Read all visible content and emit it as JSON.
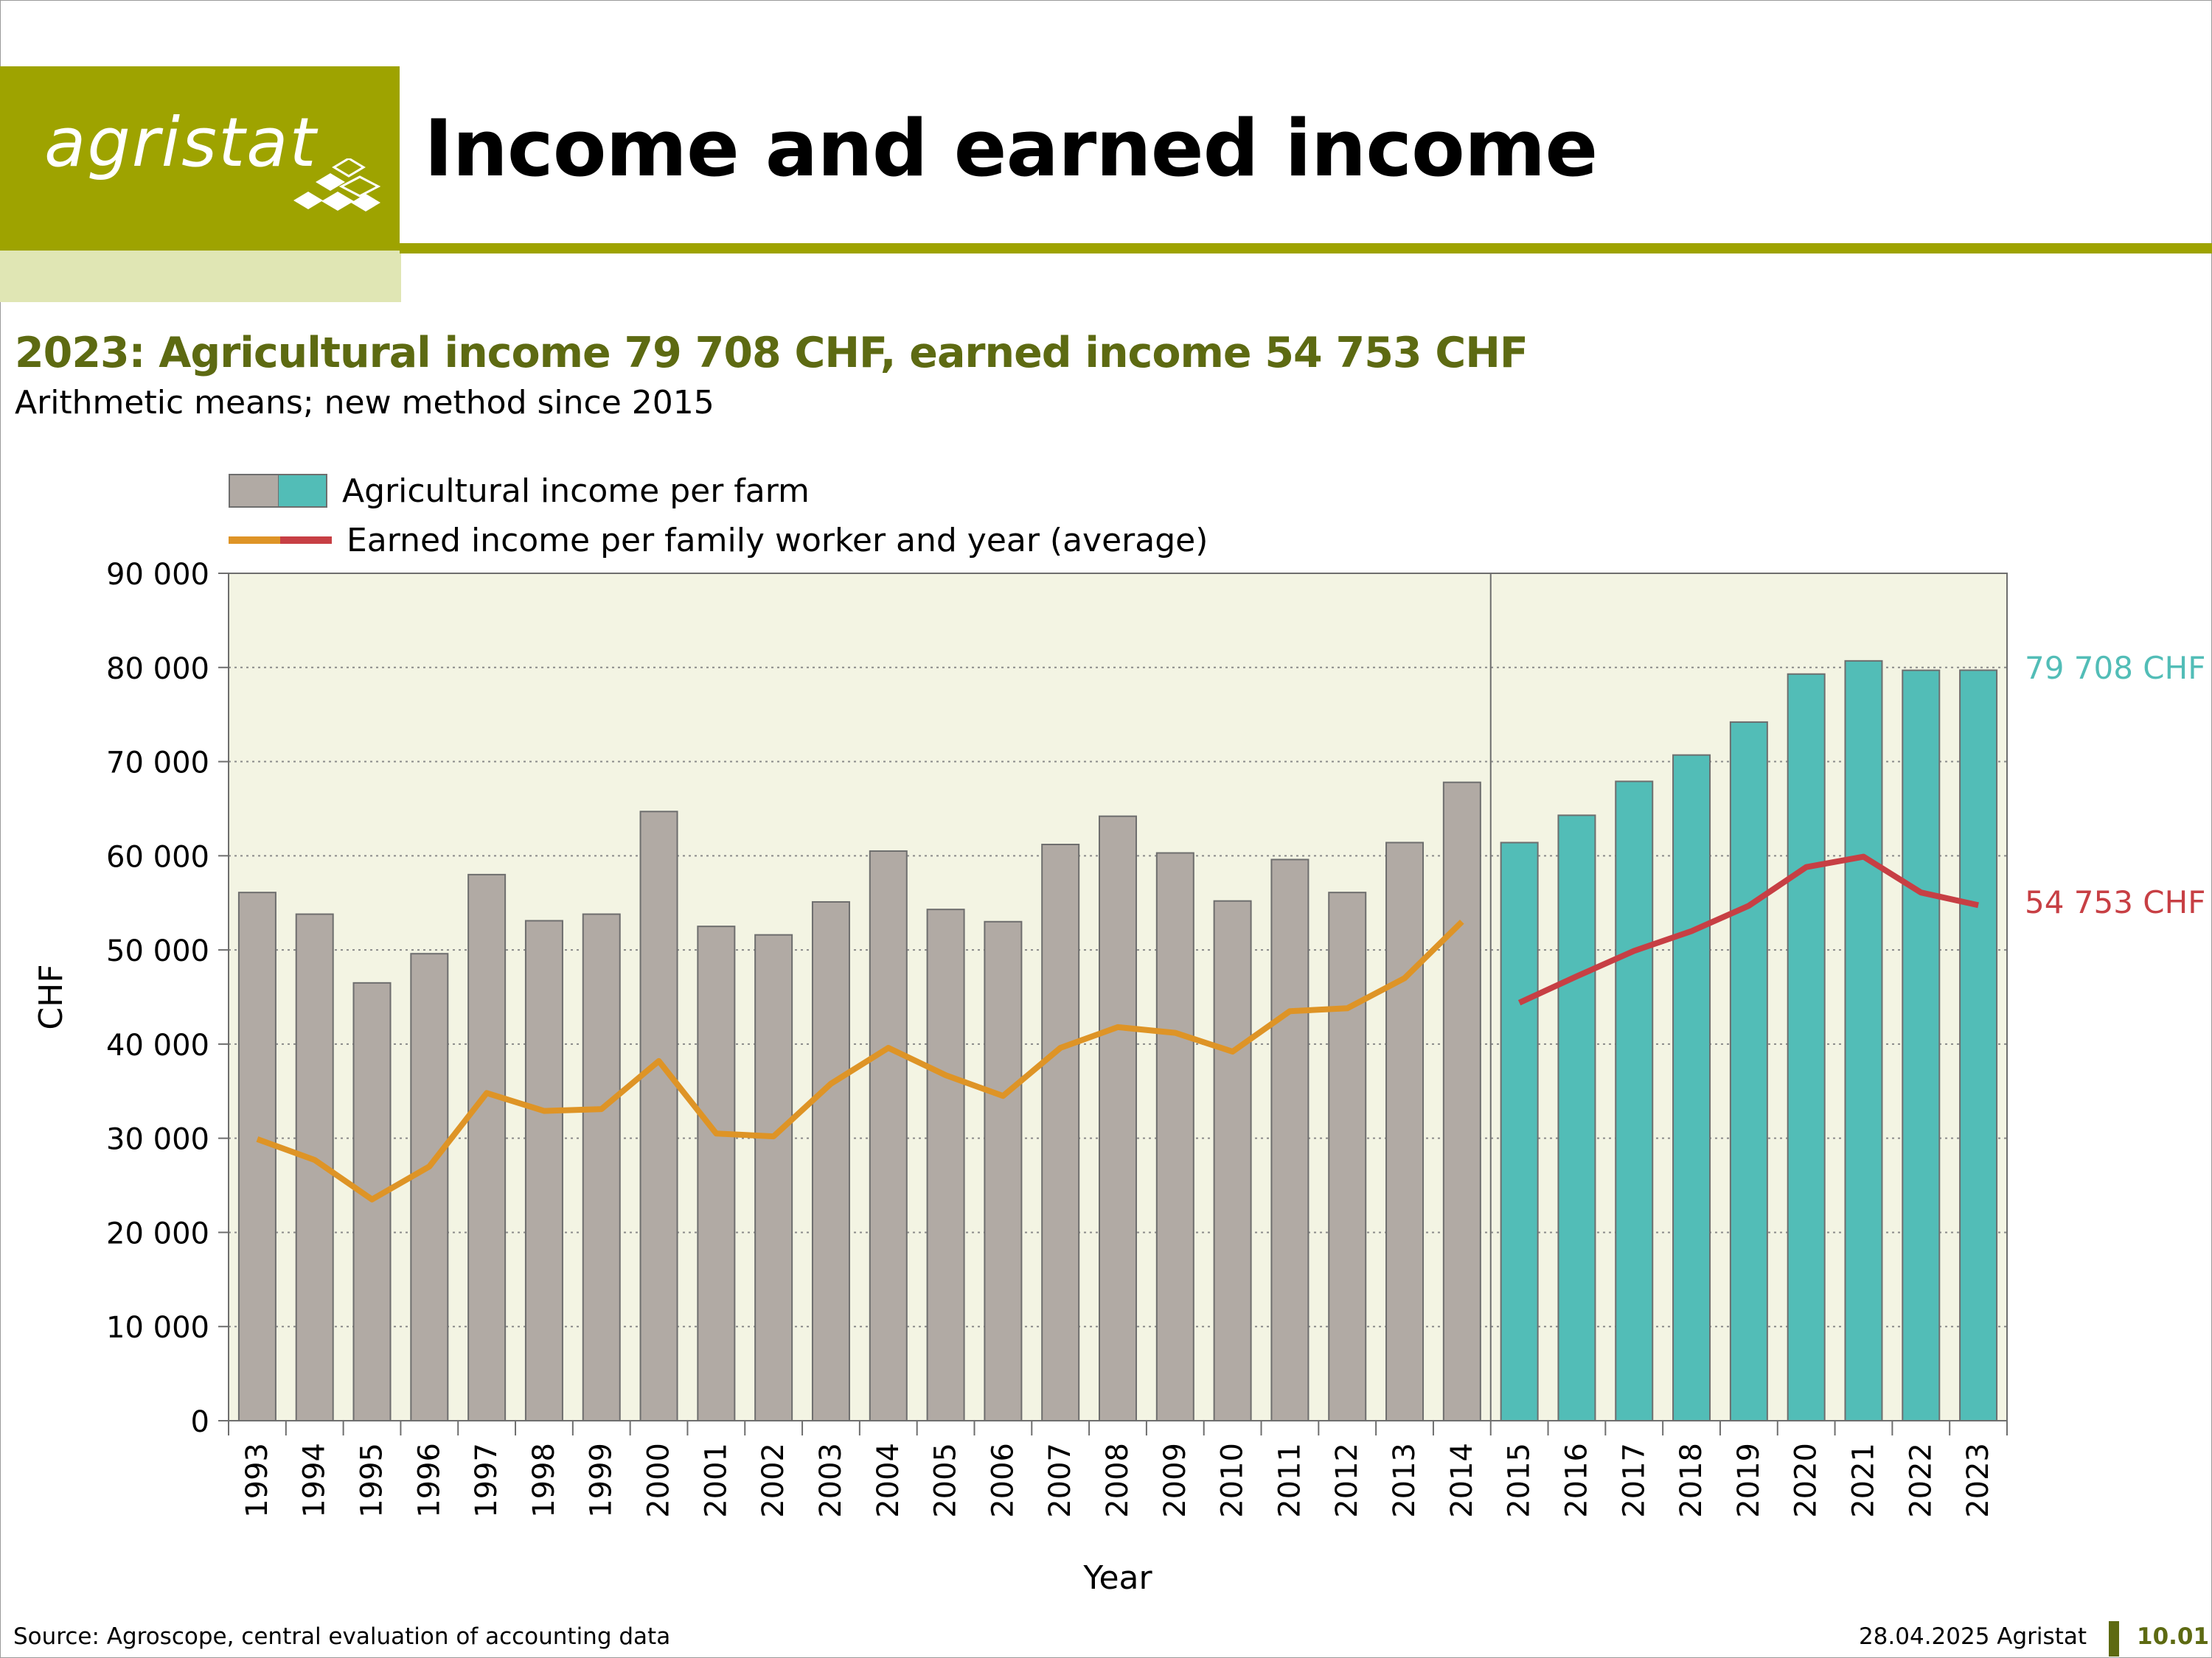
{
  "brand": {
    "logo_text": "agristat"
  },
  "header": {
    "title": "Income and earned income"
  },
  "headline": "2023: Agricultural income 79 708 CHF, earned income 54 753 CHF",
  "subheadline": "Arithmetic means; new method since 2015",
  "legend": {
    "bars_label": "Agricultural income per farm",
    "line_label": "Earned income per family worker and year (average)"
  },
  "colors": {
    "bar_old": "#b1aaa4",
    "bar_new": "#52bdb7",
    "line_old": "#de9426",
    "line_new": "#c73f44",
    "plot_bg": "#f3f4e3",
    "brand_green": "#9ea300",
    "headline_green": "#5d6a12"
  },
  "chart_data": {
    "type": "bar",
    "xlabel": "Year",
    "ylabel": "CHF",
    "ylim": [
      0,
      90000
    ],
    "yticks": [
      "0",
      "10 000",
      "20 000",
      "30 000",
      "40 000",
      "50 000",
      "60 000",
      "70 000",
      "80 000",
      "90 000"
    ],
    "grid": "dotted horizontal",
    "method_break_after": "2014",
    "categories": [
      "1993",
      "1994",
      "1995",
      "1996",
      "1997",
      "1998",
      "1999",
      "2000",
      "2001",
      "2002",
      "2003",
      "2004",
      "2005",
      "2006",
      "2007",
      "2008",
      "2009",
      "2010",
      "2011",
      "2012",
      "2013",
      "2014",
      "2015",
      "2016",
      "2017",
      "2018",
      "2019",
      "2020",
      "2021",
      "2022",
      "2023"
    ],
    "series": [
      {
        "name": "Agricultural income per farm",
        "kind": "bar",
        "values": [
          56100,
          53800,
          46500,
          49600,
          58000,
          53100,
          53800,
          64700,
          52500,
          51600,
          55100,
          60500,
          54300,
          53000,
          61200,
          64200,
          60300,
          55200,
          59600,
          56100,
          61400,
          67800,
          61400,
          64300,
          67900,
          70700,
          74200,
          79300,
          80700,
          79700,
          79708
        ]
      },
      {
        "name": "Earned income per family worker and year (average)",
        "kind": "line",
        "values": [
          29900,
          27700,
          23500,
          27000,
          34800,
          32900,
          33100,
          38200,
          30500,
          30200,
          35800,
          39600,
          36700,
          34500,
          39600,
          41800,
          41200,
          39200,
          43500,
          43800,
          47000,
          53000,
          44400,
          47200,
          49900,
          52000,
          54700,
          58800,
          59900,
          56100,
          54753
        ]
      }
    ],
    "annotations": [
      {
        "text": "79 708 CHF",
        "series": "Agricultural income per farm",
        "year": "2023"
      },
      {
        "text": "54 753 CHF",
        "series": "Earned income per family worker and year (average)",
        "year": "2023"
      }
    ]
  },
  "footer": {
    "source": "Source: Agroscope, central evaluation of accounting data",
    "date": "28.04.2025 Agristat",
    "page": "10.01"
  }
}
